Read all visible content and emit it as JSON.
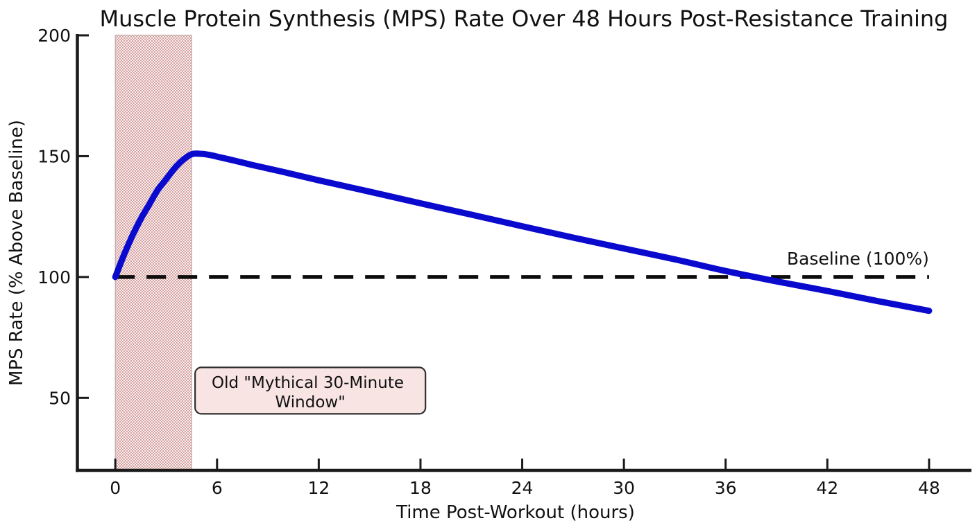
{
  "figure": {
    "background": "#ffffff"
  },
  "chart_data": {
    "type": "line",
    "title": "Muscle Protein Synthesis (MPS) Rate Over 48 Hours Post-Resistance Training",
    "xlabel": "Time Post-Workout (hours)",
    "ylabel": "MPS Rate (% Above Baseline)",
    "xlim": [
      -2.3,
      50.5
    ],
    "ylim": [
      20,
      200
    ],
    "xticks": [
      0,
      6,
      12,
      18,
      24,
      30,
      36,
      42,
      48
    ],
    "yticks": [
      50,
      100,
      150,
      200
    ],
    "grid": false,
    "legend": null,
    "series": [
      {
        "name": "MPS rate",
        "color": "#0a0ace",
        "line_width": 9,
        "x": [
          0,
          0.5,
          1,
          1.5,
          2,
          2.5,
          3,
          3.5,
          4,
          4.5,
          5,
          5.5,
          6,
          7,
          8,
          10,
          12,
          15,
          18,
          21,
          24,
          27,
          30,
          33,
          36,
          39,
          42,
          45,
          48
        ],
        "y": [
          100,
          109,
          117,
          124,
          130,
          136,
          140.5,
          145,
          148.5,
          150.8,
          151,
          150.6,
          149.8,
          148.2,
          146.5,
          143.3,
          140,
          135.3,
          130.5,
          125.8,
          121,
          116.3,
          111.8,
          107.3,
          102.5,
          98.2,
          94.2,
          90,
          86
        ]
      }
    ],
    "baseline": {
      "value": 100,
      "x_start": 0,
      "x_end": 48,
      "label": "Baseline (100%)",
      "label_anchor": {
        "x": 48,
        "y": 104
      },
      "color": "#0c0c0c",
      "dash": [
        28,
        17
      ],
      "line_width": 5.5
    },
    "shaded_region": {
      "x0": 0,
      "x1": 4.5,
      "dot_color": "#d6a2a2",
      "bg_color": "#f9f0ef",
      "edge_color": "#bfaaaa"
    },
    "annotation_box": {
      "line1": "Old \"Mythical 30-Minute",
      "line2": "Window\"",
      "anchor": {
        "x": 11.5,
        "y": 53
      },
      "bg": "#f9e4e4",
      "border": "#2f2f2f"
    },
    "axis_color": "#1a1a1a",
    "text_color": "#111111"
  }
}
